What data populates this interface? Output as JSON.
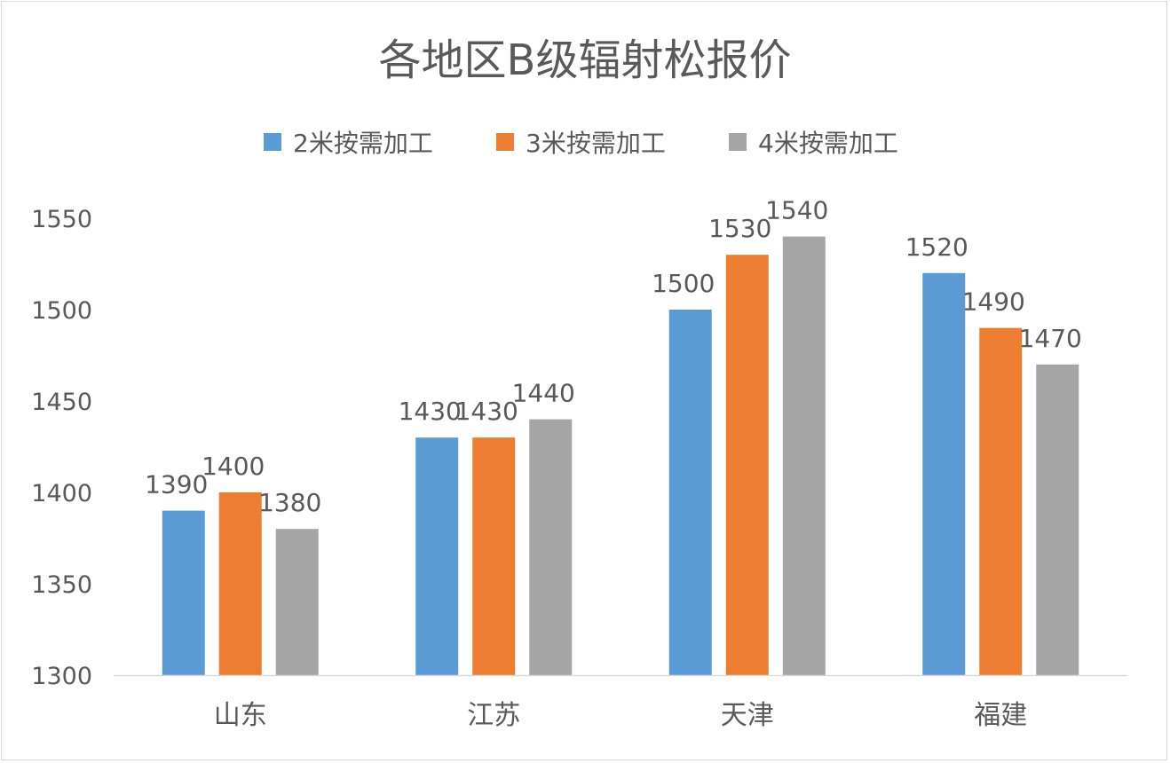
{
  "chart_data": {
    "type": "bar",
    "title": "各地区B级辐射松报价",
    "categories": [
      "山东",
      "江苏",
      "天津",
      "福建"
    ],
    "series": [
      {
        "name": "2米按需加工",
        "color": "#5b9bd5",
        "values": [
          1390,
          1430,
          1500,
          1520
        ]
      },
      {
        "name": "3米按需加工",
        "color": "#ed7d31",
        "values": [
          1400,
          1430,
          1530,
          1490
        ]
      },
      {
        "name": "4米按需加工",
        "color": "#a5a5a5",
        "values": [
          1380,
          1440,
          1540,
          1470
        ]
      }
    ],
    "ylim": [
      1300,
      1550
    ],
    "yticks": [
      1300,
      1350,
      1400,
      1450,
      1500,
      1550
    ],
    "grid": false,
    "legend": "top",
    "data_labels": true
  }
}
